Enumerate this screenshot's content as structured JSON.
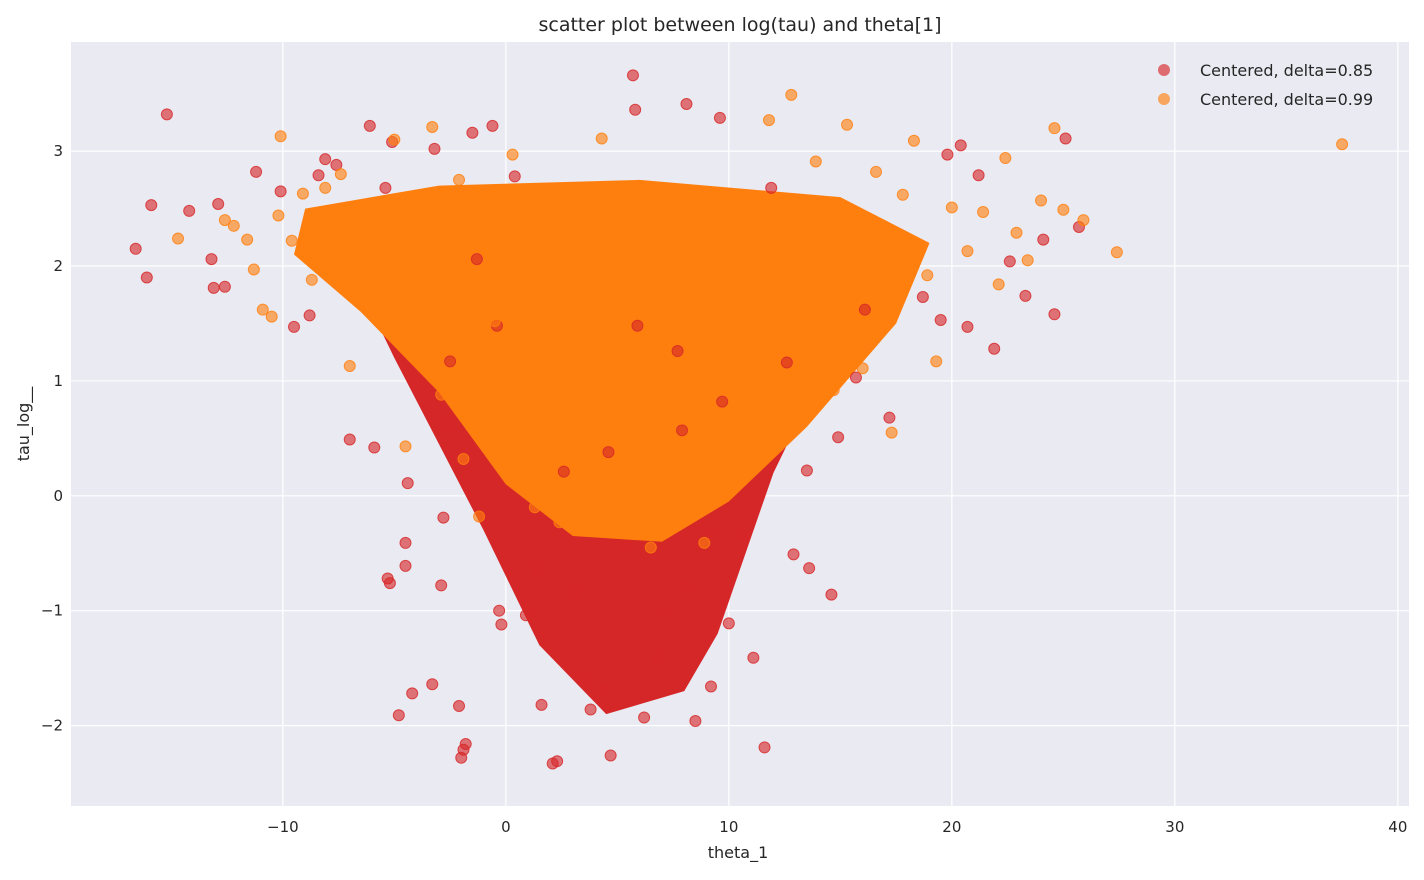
{
  "chart_data": {
    "type": "scatter",
    "title": "scatter plot between log(tau) and theta[1]",
    "xlabel": "theta_1",
    "ylabel": "tau_log__",
    "xlim": [
      -19.5,
      40.5
    ],
    "ylim": [
      -2.7,
      3.95
    ],
    "xticks": [
      -10,
      0,
      10,
      20,
      30,
      40
    ],
    "xtick_labels": [
      "−10",
      "0",
      "10",
      "20",
      "30",
      "40"
    ],
    "yticks": [
      -2,
      -1,
      0,
      1,
      2,
      3
    ],
    "ytick_labels": [
      "−2",
      "−1",
      "0",
      "1",
      "2",
      "3"
    ],
    "grid": true,
    "legend_position": "top-right",
    "series": [
      {
        "name": "Centered, delta=0.85",
        "color": "#d62728",
        "points": [
          [
            -16.6,
            2.15
          ],
          [
            -16.1,
            1.9
          ],
          [
            -15.9,
            2.53
          ],
          [
            -15.2,
            3.32
          ],
          [
            -14.2,
            2.48
          ],
          [
            -13.2,
            2.06
          ],
          [
            -13.1,
            1.81
          ],
          [
            -12.9,
            2.54
          ],
          [
            -12.6,
            1.82
          ],
          [
            -11.2,
            2.82
          ],
          [
            -10.1,
            2.65
          ],
          [
            -9.5,
            1.47
          ],
          [
            -8.8,
            1.57
          ],
          [
            -8.4,
            2.79
          ],
          [
            -8.1,
            2.93
          ],
          [
            -7.6,
            2.88
          ],
          [
            -7.0,
            0.49
          ],
          [
            -6.1,
            3.22
          ],
          [
            -5.9,
            0.42
          ],
          [
            -5.4,
            2.68
          ],
          [
            -5.1,
            3.08
          ],
          [
            -5.3,
            -0.72
          ],
          [
            -5.2,
            -0.76
          ],
          [
            -4.8,
            -1.91
          ],
          [
            -4.5,
            -0.41
          ],
          [
            -4.5,
            -0.61
          ],
          [
            -4.4,
            0.11
          ],
          [
            -4.2,
            -1.72
          ],
          [
            -3.3,
            -1.64
          ],
          [
            -3.2,
            3.02
          ],
          [
            -2.9,
            -0.78
          ],
          [
            -2.8,
            -0.19
          ],
          [
            -2.6,
            0.63
          ],
          [
            -2.5,
            1.17
          ],
          [
            -2.1,
            -1.83
          ],
          [
            -2.0,
            -2.28
          ],
          [
            -1.9,
            -2.21
          ],
          [
            -1.8,
            -2.16
          ],
          [
            -1.5,
            3.16
          ],
          [
            -1.3,
            2.06
          ],
          [
            -0.6,
            3.22
          ],
          [
            -0.4,
            1.48
          ],
          [
            -0.3,
            -1.0
          ],
          [
            -0.2,
            -1.12
          ],
          [
            0.4,
            2.78
          ],
          [
            0.9,
            -1.04
          ],
          [
            1.4,
            -0.65
          ],
          [
            1.6,
            -1.82
          ],
          [
            2.1,
            -2.33
          ],
          [
            2.3,
            -2.31
          ],
          [
            2.6,
            0.21
          ],
          [
            3.1,
            -0.85
          ],
          [
            3.5,
            -1.58
          ],
          [
            3.8,
            -1.86
          ],
          [
            4.4,
            -1.68
          ],
          [
            4.6,
            0.38
          ],
          [
            4.7,
            -2.26
          ],
          [
            5.4,
            -0.44
          ],
          [
            5.7,
            3.66
          ],
          [
            5.8,
            3.36
          ],
          [
            5.9,
            1.48
          ],
          [
            6.2,
            -1.93
          ],
          [
            6.8,
            -1.42
          ],
          [
            7.1,
            -1.01
          ],
          [
            7.7,
            1.26
          ],
          [
            7.9,
            0.57
          ],
          [
            8.0,
            -0.78
          ],
          [
            8.1,
            3.41
          ],
          [
            8.5,
            -1.96
          ],
          [
            9.1,
            -0.33
          ],
          [
            9.2,
            -1.66
          ],
          [
            9.7,
            0.82
          ],
          [
            9.6,
            3.29
          ],
          [
            10.0,
            -1.11
          ],
          [
            10.6,
            -0.35
          ],
          [
            11.1,
            -1.41
          ],
          [
            11.6,
            -2.19
          ],
          [
            11.9,
            2.68
          ],
          [
            12.6,
            1.16
          ],
          [
            12.9,
            -0.51
          ],
          [
            13.5,
            0.22
          ],
          [
            13.6,
            -0.63
          ],
          [
            14.6,
            -0.86
          ],
          [
            14.9,
            0.51
          ],
          [
            15.7,
            1.03
          ],
          [
            16.1,
            1.62
          ],
          [
            17.2,
            0.68
          ],
          [
            18.7,
            1.73
          ],
          [
            19.5,
            1.53
          ],
          [
            19.8,
            2.97
          ],
          [
            20.4,
            3.05
          ],
          [
            20.7,
            1.47
          ],
          [
            21.2,
            2.79
          ],
          [
            21.9,
            1.28
          ],
          [
            22.6,
            2.04
          ],
          [
            23.3,
            1.74
          ],
          [
            24.1,
            2.23
          ],
          [
            24.6,
            1.58
          ],
          [
            25.1,
            3.11
          ],
          [
            25.7,
            2.34
          ]
        ]
      },
      {
        "name": "Centered, delta=0.99",
        "color": "#ff7f0e",
        "points": [
          [
            -14.7,
            2.24
          ],
          [
            -12.6,
            2.4
          ],
          [
            -12.2,
            2.35
          ],
          [
            -11.6,
            2.23
          ],
          [
            -11.3,
            1.97
          ],
          [
            -10.9,
            1.62
          ],
          [
            -10.5,
            1.56
          ],
          [
            -10.2,
            2.44
          ],
          [
            -10.1,
            3.13
          ],
          [
            -9.6,
            2.22
          ],
          [
            -9.1,
            2.63
          ],
          [
            -8.7,
            1.88
          ],
          [
            -8.1,
            2.68
          ],
          [
            -7.4,
            2.8
          ],
          [
            -7.0,
            1.13
          ],
          [
            -6.7,
            1.95
          ],
          [
            -6.2,
            2.46
          ],
          [
            -5.6,
            2.15
          ],
          [
            -5.0,
            3.1
          ],
          [
            -4.5,
            0.43
          ],
          [
            -3.3,
            3.21
          ],
          [
            -2.9,
            0.88
          ],
          [
            -2.1,
            2.75
          ],
          [
            -1.9,
            0.32
          ],
          [
            -1.2,
            -0.18
          ],
          [
            -0.5,
            1.52
          ],
          [
            0.3,
            2.97
          ],
          [
            0.8,
            0.76
          ],
          [
            1.3,
            -0.1
          ],
          [
            1.8,
            2.6
          ],
          [
            2.4,
            -0.23
          ],
          [
            3.0,
            1.62
          ],
          [
            3.8,
            2.29
          ],
          [
            4.3,
            3.11
          ],
          [
            4.9,
            -0.07
          ],
          [
            5.4,
            2.13
          ],
          [
            5.9,
            0.28
          ],
          [
            6.5,
            -0.45
          ],
          [
            7.2,
            1.84
          ],
          [
            7.8,
            0.67
          ],
          [
            8.3,
            2.39
          ],
          [
            8.9,
            -0.41
          ],
          [
            9.6,
            1.28
          ],
          [
            10.2,
            0.06
          ],
          [
            10.8,
            2.47
          ],
          [
            11.3,
            1.73
          ],
          [
            11.8,
            3.27
          ],
          [
            12.2,
            0.43
          ],
          [
            12.8,
            3.49
          ],
          [
            13.3,
            1.38
          ],
          [
            13.9,
            2.91
          ],
          [
            14.7,
            0.92
          ],
          [
            15.3,
            3.23
          ],
          [
            16.0,
            1.11
          ],
          [
            16.6,
            2.82
          ],
          [
            17.3,
            0.55
          ],
          [
            17.8,
            2.62
          ],
          [
            18.3,
            3.09
          ],
          [
            18.9,
            1.92
          ],
          [
            19.3,
            1.17
          ],
          [
            20.0,
            2.51
          ],
          [
            20.7,
            2.13
          ],
          [
            21.4,
            2.47
          ],
          [
            22.1,
            1.84
          ],
          [
            22.4,
            2.94
          ],
          [
            22.9,
            2.29
          ],
          [
            23.4,
            2.05
          ],
          [
            24.0,
            2.57
          ],
          [
            24.6,
            3.2
          ],
          [
            25.0,
            2.49
          ],
          [
            25.9,
            2.4
          ],
          [
            27.4,
            2.12
          ],
          [
            37.5,
            3.06
          ]
        ]
      }
    ]
  }
}
